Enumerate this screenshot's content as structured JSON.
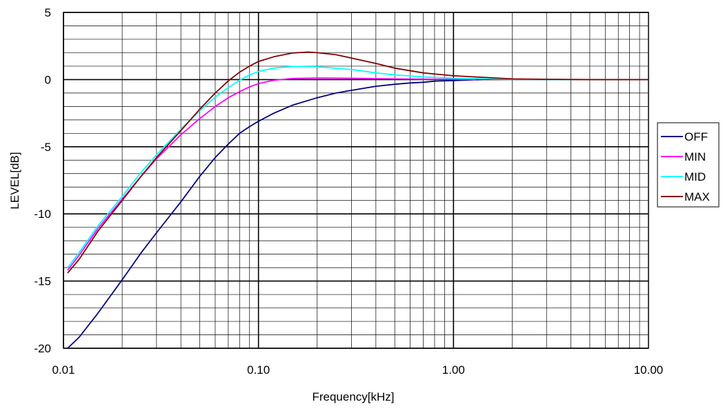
{
  "chart_data": {
    "type": "line",
    "title": "",
    "xlabel": "Frequency[kHz]",
    "ylabel": "LEVEL[dB]",
    "x_scale": "log",
    "xlim": [
      0.01,
      10
    ],
    "ylim": [
      -20,
      5
    ],
    "x_ticks": [
      {
        "value": 0.01,
        "label": "0.01"
      },
      {
        "value": 0.1,
        "label": "0.10"
      },
      {
        "value": 1,
        "label": "1.00"
      },
      {
        "value": 10,
        "label": "10.00"
      }
    ],
    "y_ticks": [
      {
        "value": 5,
        "label": "5"
      },
      {
        "value": 0,
        "label": "0"
      },
      {
        "value": -5,
        "label": "-5"
      },
      {
        "value": -10,
        "label": "-10"
      },
      {
        "value": -15,
        "label": "-15"
      },
      {
        "value": -20,
        "label": "-20"
      }
    ],
    "grid": true,
    "legend_position": "right",
    "series": [
      {
        "name": "OFF",
        "color": "#000080",
        "points": [
          [
            0.0105,
            -20
          ],
          [
            0.012,
            -19.2
          ],
          [
            0.015,
            -17.4
          ],
          [
            0.02,
            -14.9
          ],
          [
            0.025,
            -12.9
          ],
          [
            0.03,
            -11.4
          ],
          [
            0.04,
            -9.1
          ],
          [
            0.05,
            -7.2
          ],
          [
            0.06,
            -5.8
          ],
          [
            0.07,
            -4.8
          ],
          [
            0.08,
            -4.0
          ],
          [
            0.09,
            -3.5
          ],
          [
            0.1,
            -3.1
          ],
          [
            0.12,
            -2.5
          ],
          [
            0.15,
            -1.9
          ],
          [
            0.2,
            -1.35
          ],
          [
            0.25,
            -1.0
          ],
          [
            0.3,
            -0.8
          ],
          [
            0.4,
            -0.5
          ],
          [
            0.5,
            -0.35
          ],
          [
            0.6,
            -0.25
          ],
          [
            0.7,
            -0.2
          ],
          [
            0.8,
            -0.12
          ],
          [
            1.0,
            -0.07
          ],
          [
            1.2,
            -0.03
          ],
          [
            1.4,
            0
          ]
        ]
      },
      {
        "name": "MIN",
        "color": "#ff00ff",
        "points": [
          [
            0.0105,
            -14.2
          ],
          [
            0.012,
            -13.1
          ],
          [
            0.015,
            -11.1
          ],
          [
            0.02,
            -8.9
          ],
          [
            0.025,
            -7.2
          ],
          [
            0.03,
            -5.9
          ],
          [
            0.04,
            -4.1
          ],
          [
            0.05,
            -2.9
          ],
          [
            0.06,
            -2.0
          ],
          [
            0.07,
            -1.35
          ],
          [
            0.08,
            -0.9
          ],
          [
            0.09,
            -0.55
          ],
          [
            0.1,
            -0.3
          ],
          [
            0.12,
            -0.05
          ],
          [
            0.15,
            0.08
          ],
          [
            0.2,
            0.12
          ],
          [
            0.3,
            0.1
          ],
          [
            0.5,
            0.05
          ],
          [
            0.7,
            0.03
          ],
          [
            1.0,
            0.02
          ],
          [
            1.3,
            0
          ]
        ]
      },
      {
        "name": "MID",
        "color": "#00ffff",
        "points": [
          [
            0.0105,
            -14.0
          ],
          [
            0.012,
            -12.9
          ],
          [
            0.015,
            -10.9
          ],
          [
            0.02,
            -8.7
          ],
          [
            0.025,
            -6.9
          ],
          [
            0.03,
            -5.6
          ],
          [
            0.04,
            -3.7
          ],
          [
            0.05,
            -2.3
          ],
          [
            0.06,
            -1.3
          ],
          [
            0.07,
            -0.6
          ],
          [
            0.08,
            -0.05
          ],
          [
            0.09,
            0.35
          ],
          [
            0.1,
            0.6
          ],
          [
            0.12,
            0.85
          ],
          [
            0.15,
            0.98
          ],
          [
            0.2,
            0.95
          ],
          [
            0.3,
            0.75
          ],
          [
            0.4,
            0.5
          ],
          [
            0.5,
            0.35
          ],
          [
            0.7,
            0.2
          ],
          [
            1.0,
            0.1
          ],
          [
            1.5,
            0.05
          ],
          [
            2.0,
            0.02
          ],
          [
            3.0,
            0.01
          ],
          [
            4.0,
            0
          ]
        ]
      },
      {
        "name": "MAX",
        "color": "#800000",
        "points": [
          [
            0.0105,
            -14.4
          ],
          [
            0.012,
            -13.4
          ],
          [
            0.015,
            -11.3
          ],
          [
            0.02,
            -9.0
          ],
          [
            0.025,
            -7.2
          ],
          [
            0.03,
            -5.8
          ],
          [
            0.04,
            -3.8
          ],
          [
            0.05,
            -2.2
          ],
          [
            0.06,
            -1.0
          ],
          [
            0.07,
            -0.1
          ],
          [
            0.08,
            0.55
          ],
          [
            0.09,
            1.0
          ],
          [
            0.1,
            1.35
          ],
          [
            0.12,
            1.7
          ],
          [
            0.15,
            1.98
          ],
          [
            0.18,
            2.05
          ],
          [
            0.2,
            2.0
          ],
          [
            0.25,
            1.85
          ],
          [
            0.3,
            1.6
          ],
          [
            0.4,
            1.2
          ],
          [
            0.5,
            0.85
          ],
          [
            0.7,
            0.5
          ],
          [
            1.0,
            0.28
          ],
          [
            1.5,
            0.15
          ],
          [
            2.0,
            0.05
          ],
          [
            3.0,
            0.02
          ],
          [
            5.0,
            0
          ],
          [
            10.0,
            0
          ]
        ]
      }
    ]
  }
}
